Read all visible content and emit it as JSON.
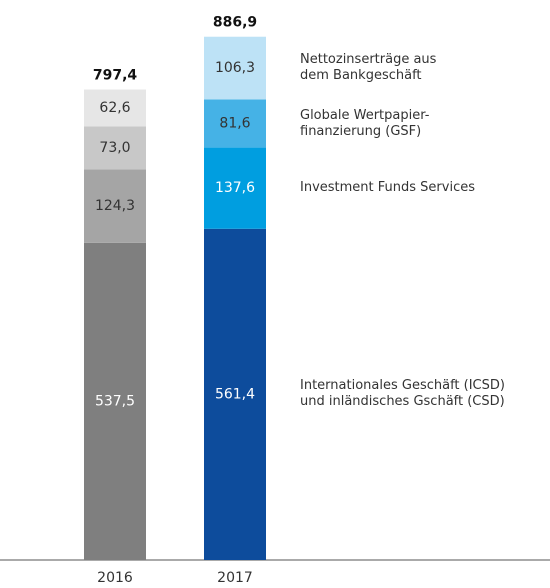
{
  "chart_data": {
    "type": "stacked-bar",
    "categories": [
      "2016",
      "2017"
    ],
    "series": [
      {
        "name": "Internationales Geschäft (ICSD)\nund inländisches Gschäft (CSD)",
        "colors": [
          "#7f7f7f",
          "#0d4c9c"
        ],
        "values": [
          537.5,
          561.4
        ],
        "value_labels": [
          "537,5",
          "561,4"
        ]
      },
      {
        "name": "Investment Funds Services",
        "colors": [
          "#a5a5a5",
          "#009ee0"
        ],
        "values": [
          124.3,
          137.6
        ],
        "value_labels": [
          "124,3",
          "137,6"
        ]
      },
      {
        "name": "Globale Wertpapier-\nfinanzierung (GSF)",
        "colors": [
          "#c8c8c8",
          "#45b2e6"
        ],
        "values": [
          73.0,
          81.6
        ],
        "value_labels": [
          "73,0",
          "81,6"
        ]
      },
      {
        "name": "Nettozinserträge aus\ndem Bankgeschäft",
        "colors": [
          "#e6e6e6",
          "#bde2f6"
        ],
        "values": [
          62.6,
          106.3
        ],
        "value_labels": [
          "62,6",
          "106,3"
        ]
      }
    ],
    "totals": [
      797.4,
      886.9
    ],
    "total_labels": [
      "797,4",
      "886,9"
    ],
    "ylim": [
      0,
      900
    ]
  }
}
